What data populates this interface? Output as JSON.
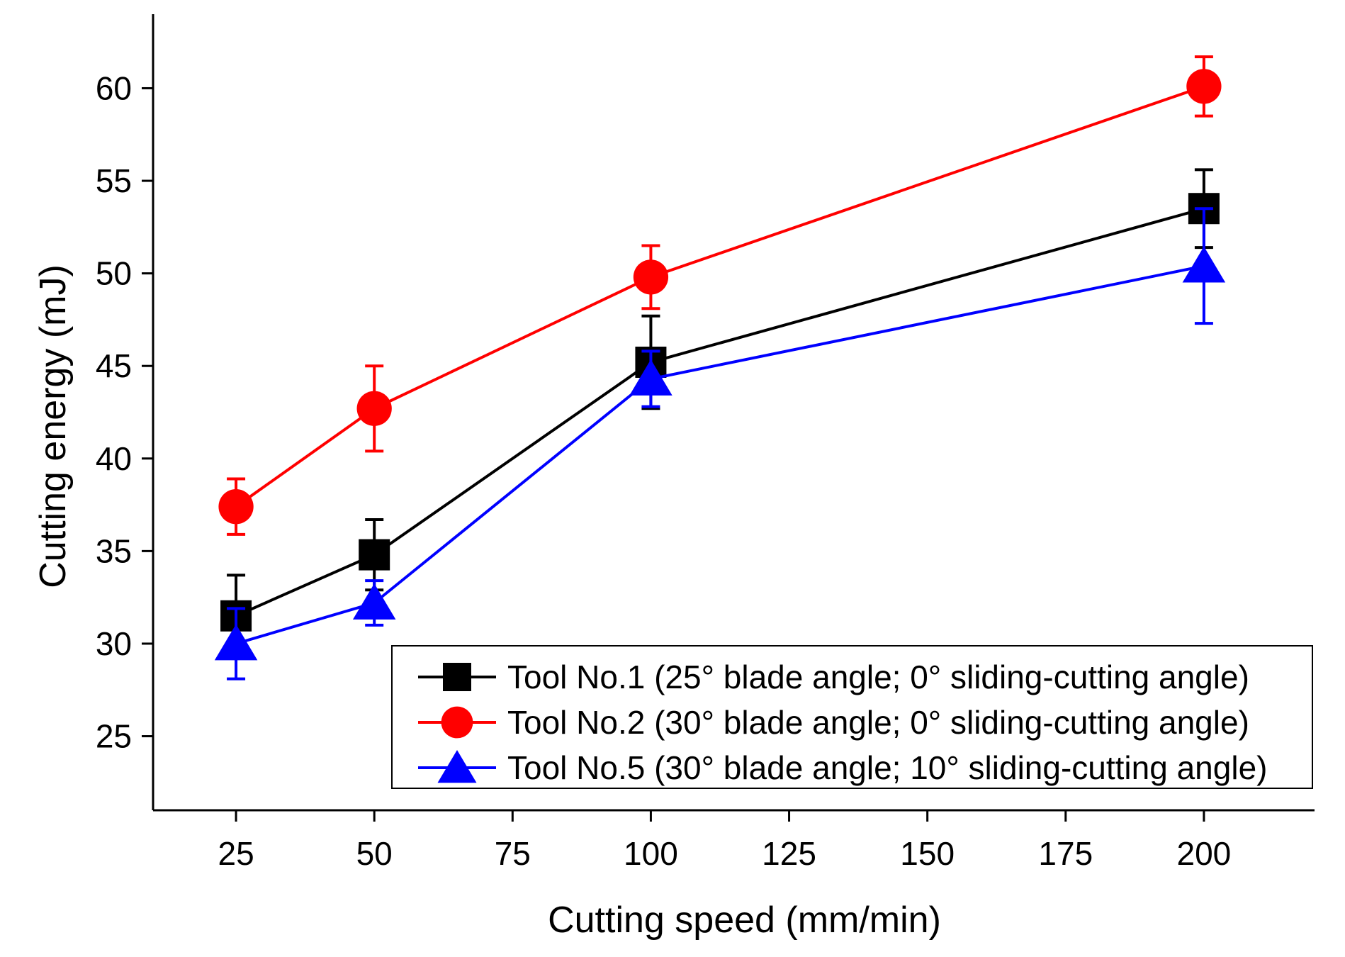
{
  "chart_data": {
    "type": "line",
    "title": "",
    "xlabel": "Cutting speed (mm/min)",
    "ylabel": "Cutting energy (mJ)",
    "xlim": [
      10,
      220
    ],
    "ylim": [
      21,
      64
    ],
    "x_ticks": [
      25,
      50,
      75,
      100,
      125,
      150,
      175,
      200
    ],
    "x_tick_labels": [
      "25",
      "50",
      "75",
      "100",
      "125",
      "150",
      "175",
      "200"
    ],
    "y_ticks": [
      25,
      30,
      35,
      40,
      45,
      50,
      55,
      60
    ],
    "y_tick_labels": [
      "25",
      "30",
      "35",
      "40",
      "45",
      "50",
      "55",
      "60"
    ],
    "grid": false,
    "legend_position": "bottom-right",
    "x": [
      25,
      50,
      100,
      200
    ],
    "series": [
      {
        "name": "Tool No.1 (25° blade angle; 0° sliding-cutting angle)",
        "color": "#000000",
        "marker": "square",
        "values": [
          31.5,
          34.8,
          45.2,
          53.5
        ],
        "errors": [
          2.2,
          1.9,
          2.5,
          2.1
        ]
      },
      {
        "name": "Tool No.2 (30° blade angle; 0° sliding-cutting angle)",
        "color": "#ff0000",
        "marker": "circle",
        "values": [
          37.4,
          42.7,
          49.8,
          60.1
        ],
        "errors": [
          1.5,
          2.3,
          1.7,
          1.6
        ]
      },
      {
        "name": "Tool No.5 (30° blade angle; 10° sliding-cutting angle)",
        "color": "#0000ff",
        "marker": "triangle",
        "values": [
          30.0,
          32.2,
          44.3,
          50.4
        ],
        "errors": [
          1.9,
          1.2,
          1.5,
          3.1
        ]
      }
    ]
  }
}
